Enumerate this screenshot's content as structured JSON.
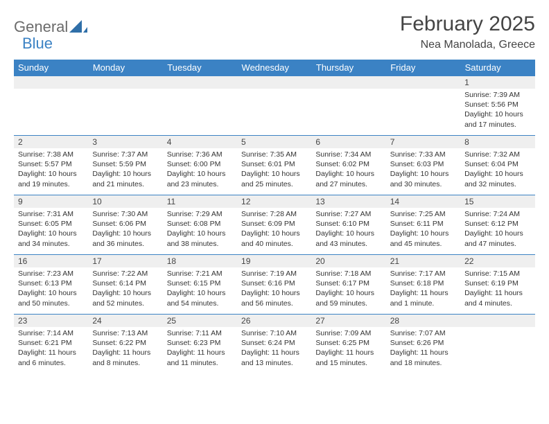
{
  "logo": {
    "word1": "General",
    "word2": "Blue"
  },
  "title": {
    "month": "February 2025",
    "location": "Nea Manolada, Greece"
  },
  "colors": {
    "header_bg": "#3b82c4",
    "header_text": "#ffffff",
    "daynum_bg": "#efefef",
    "border": "#3b82c4"
  },
  "weekdays": [
    "Sunday",
    "Monday",
    "Tuesday",
    "Wednesday",
    "Thursday",
    "Friday",
    "Saturday"
  ],
  "weeks": [
    [
      null,
      null,
      null,
      null,
      null,
      null,
      {
        "n": "1",
        "sr": "Sunrise: 7:39 AM",
        "ss": "Sunset: 5:56 PM",
        "dl1": "Daylight: 10 hours",
        "dl2": "and 17 minutes."
      }
    ],
    [
      {
        "n": "2",
        "sr": "Sunrise: 7:38 AM",
        "ss": "Sunset: 5:57 PM",
        "dl1": "Daylight: 10 hours",
        "dl2": "and 19 minutes."
      },
      {
        "n": "3",
        "sr": "Sunrise: 7:37 AM",
        "ss": "Sunset: 5:59 PM",
        "dl1": "Daylight: 10 hours",
        "dl2": "and 21 minutes."
      },
      {
        "n": "4",
        "sr": "Sunrise: 7:36 AM",
        "ss": "Sunset: 6:00 PM",
        "dl1": "Daylight: 10 hours",
        "dl2": "and 23 minutes."
      },
      {
        "n": "5",
        "sr": "Sunrise: 7:35 AM",
        "ss": "Sunset: 6:01 PM",
        "dl1": "Daylight: 10 hours",
        "dl2": "and 25 minutes."
      },
      {
        "n": "6",
        "sr": "Sunrise: 7:34 AM",
        "ss": "Sunset: 6:02 PM",
        "dl1": "Daylight: 10 hours",
        "dl2": "and 27 minutes."
      },
      {
        "n": "7",
        "sr": "Sunrise: 7:33 AM",
        "ss": "Sunset: 6:03 PM",
        "dl1": "Daylight: 10 hours",
        "dl2": "and 30 minutes."
      },
      {
        "n": "8",
        "sr": "Sunrise: 7:32 AM",
        "ss": "Sunset: 6:04 PM",
        "dl1": "Daylight: 10 hours",
        "dl2": "and 32 minutes."
      }
    ],
    [
      {
        "n": "9",
        "sr": "Sunrise: 7:31 AM",
        "ss": "Sunset: 6:05 PM",
        "dl1": "Daylight: 10 hours",
        "dl2": "and 34 minutes."
      },
      {
        "n": "10",
        "sr": "Sunrise: 7:30 AM",
        "ss": "Sunset: 6:06 PM",
        "dl1": "Daylight: 10 hours",
        "dl2": "and 36 minutes."
      },
      {
        "n": "11",
        "sr": "Sunrise: 7:29 AM",
        "ss": "Sunset: 6:08 PM",
        "dl1": "Daylight: 10 hours",
        "dl2": "and 38 minutes."
      },
      {
        "n": "12",
        "sr": "Sunrise: 7:28 AM",
        "ss": "Sunset: 6:09 PM",
        "dl1": "Daylight: 10 hours",
        "dl2": "and 40 minutes."
      },
      {
        "n": "13",
        "sr": "Sunrise: 7:27 AM",
        "ss": "Sunset: 6:10 PM",
        "dl1": "Daylight: 10 hours",
        "dl2": "and 43 minutes."
      },
      {
        "n": "14",
        "sr": "Sunrise: 7:25 AM",
        "ss": "Sunset: 6:11 PM",
        "dl1": "Daylight: 10 hours",
        "dl2": "and 45 minutes."
      },
      {
        "n": "15",
        "sr": "Sunrise: 7:24 AM",
        "ss": "Sunset: 6:12 PM",
        "dl1": "Daylight: 10 hours",
        "dl2": "and 47 minutes."
      }
    ],
    [
      {
        "n": "16",
        "sr": "Sunrise: 7:23 AM",
        "ss": "Sunset: 6:13 PM",
        "dl1": "Daylight: 10 hours",
        "dl2": "and 50 minutes."
      },
      {
        "n": "17",
        "sr": "Sunrise: 7:22 AM",
        "ss": "Sunset: 6:14 PM",
        "dl1": "Daylight: 10 hours",
        "dl2": "and 52 minutes."
      },
      {
        "n": "18",
        "sr": "Sunrise: 7:21 AM",
        "ss": "Sunset: 6:15 PM",
        "dl1": "Daylight: 10 hours",
        "dl2": "and 54 minutes."
      },
      {
        "n": "19",
        "sr": "Sunrise: 7:19 AM",
        "ss": "Sunset: 6:16 PM",
        "dl1": "Daylight: 10 hours",
        "dl2": "and 56 minutes."
      },
      {
        "n": "20",
        "sr": "Sunrise: 7:18 AM",
        "ss": "Sunset: 6:17 PM",
        "dl1": "Daylight: 10 hours",
        "dl2": "and 59 minutes."
      },
      {
        "n": "21",
        "sr": "Sunrise: 7:17 AM",
        "ss": "Sunset: 6:18 PM",
        "dl1": "Daylight: 11 hours",
        "dl2": "and 1 minute."
      },
      {
        "n": "22",
        "sr": "Sunrise: 7:15 AM",
        "ss": "Sunset: 6:19 PM",
        "dl1": "Daylight: 11 hours",
        "dl2": "and 4 minutes."
      }
    ],
    [
      {
        "n": "23",
        "sr": "Sunrise: 7:14 AM",
        "ss": "Sunset: 6:21 PM",
        "dl1": "Daylight: 11 hours",
        "dl2": "and 6 minutes."
      },
      {
        "n": "24",
        "sr": "Sunrise: 7:13 AM",
        "ss": "Sunset: 6:22 PM",
        "dl1": "Daylight: 11 hours",
        "dl2": "and 8 minutes."
      },
      {
        "n": "25",
        "sr": "Sunrise: 7:11 AM",
        "ss": "Sunset: 6:23 PM",
        "dl1": "Daylight: 11 hours",
        "dl2": "and 11 minutes."
      },
      {
        "n": "26",
        "sr": "Sunrise: 7:10 AM",
        "ss": "Sunset: 6:24 PM",
        "dl1": "Daylight: 11 hours",
        "dl2": "and 13 minutes."
      },
      {
        "n": "27",
        "sr": "Sunrise: 7:09 AM",
        "ss": "Sunset: 6:25 PM",
        "dl1": "Daylight: 11 hours",
        "dl2": "and 15 minutes."
      },
      {
        "n": "28",
        "sr": "Sunrise: 7:07 AM",
        "ss": "Sunset: 6:26 PM",
        "dl1": "Daylight: 11 hours",
        "dl2": "and 18 minutes."
      },
      null
    ]
  ]
}
